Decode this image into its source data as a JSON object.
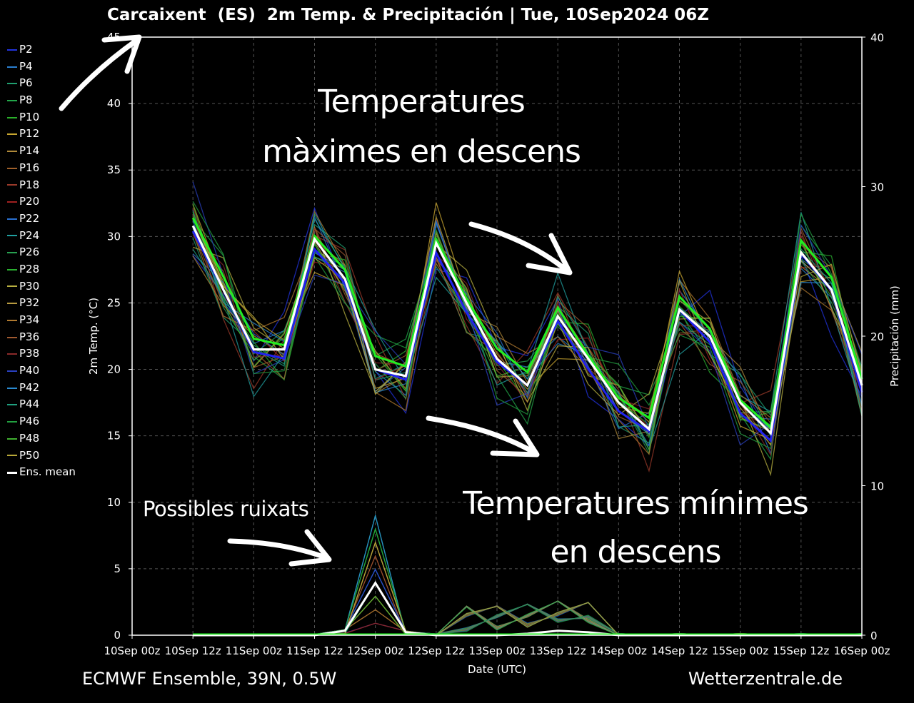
{
  "header": {
    "title": "Carcaixent  (ES)  2m Temp. & Precipitación | Tue, 10Sep2024 06Z"
  },
  "footer": {
    "left": "ECMWF Ensemble, 39N, 0.5W",
    "right": "Wetterzentrale.de"
  },
  "annotations": {
    "max_line1": "Temperatures",
    "max_line2": "màximes en descens",
    "min_line1": "Temperatures mínimes",
    "min_line2": "en descens",
    "rain": "Possibles ruixats"
  },
  "legend": [
    {
      "label": "P2",
      "color": "#2233dd"
    },
    {
      "label": "P4",
      "color": "#2a7fd0"
    },
    {
      "label": "P6",
      "color": "#20a070"
    },
    {
      "label": "P8",
      "color": "#22a84a"
    },
    {
      "label": "P10",
      "color": "#2ab02a"
    },
    {
      "label": "P12",
      "color": "#c8a630"
    },
    {
      "label": "P14",
      "color": "#b08a3a"
    },
    {
      "label": "P16",
      "color": "#a0602a"
    },
    {
      "label": "P18",
      "color": "#9a3a2a"
    },
    {
      "label": "P20",
      "color": "#a02020"
    },
    {
      "label": "P22",
      "color": "#2a70d0"
    },
    {
      "label": "P24",
      "color": "#20a0a0"
    },
    {
      "label": "P26",
      "color": "#28a050"
    },
    {
      "label": "P28",
      "color": "#2ab030"
    },
    {
      "label": "P30",
      "color": "#b8b040"
    },
    {
      "label": "P32",
      "color": "#b89a40"
    },
    {
      "label": "P34",
      "color": "#b07a30"
    },
    {
      "label": "P36",
      "color": "#a05a30"
    },
    {
      "label": "P38",
      "color": "#8a2a2a"
    },
    {
      "label": "P40",
      "color": "#2a40c0"
    },
    {
      "label": "P42",
      "color": "#2a8ad0"
    },
    {
      "label": "P44",
      "color": "#20a080"
    },
    {
      "label": "P46",
      "color": "#22a040"
    },
    {
      "label": "P48",
      "color": "#40b030"
    },
    {
      "label": "P50",
      "color": "#b8a838"
    },
    {
      "label": "Ens. mean",
      "color": "#ffffff"
    }
  ],
  "chart_data": {
    "type": "line",
    "xlabel": "Date (UTC)",
    "ylabel": "2m Temp. (°C)",
    "y2label": "Precipitación (mm)",
    "ylim": [
      0,
      45
    ],
    "y2lim": [
      0,
      40
    ],
    "xlim": [
      0,
      11
    ],
    "grid": true,
    "legend_position": "left",
    "xticks": [
      {
        "x": 0,
        "label": "10Sep  00z"
      },
      {
        "x": 1,
        "label": "10Sep  12z"
      },
      {
        "x": 2,
        "label": "11Sep  00z"
      },
      {
        "x": 3,
        "label": "11Sep  12z"
      },
      {
        "x": 4,
        "label": "12Sep  00z"
      },
      {
        "x": 5,
        "label": "12Sep  12z"
      },
      {
        "x": 6,
        "label": "13Sep  00z"
      },
      {
        "x": 7,
        "label": "13Sep  12z"
      },
      {
        "x": 8,
        "label": "14Sep  00z"
      },
      {
        "x": 9,
        "label": "14Sep  12z"
      },
      {
        "x": 10,
        "label": "15Sep  00z"
      },
      {
        "x": 11,
        "label": "15Sep  12z"
      },
      {
        "x": 12,
        "label": "16Sep  00z"
      }
    ],
    "yticks": [
      0,
      5,
      10,
      15,
      20,
      25,
      30,
      35,
      40,
      45
    ],
    "y2ticks": [
      0,
      10,
      20,
      30,
      40
    ],
    "series": [
      {
        "name": "Ens. mean",
        "kind": "temperature",
        "x": [
          1,
          1.5,
          2,
          2.5,
          3,
          3.5,
          4,
          4.5,
          5,
          5.5,
          6,
          6.5,
          7,
          7.5,
          8,
          8.5,
          9,
          9.5,
          10,
          10.5,
          11,
          11.5,
          12
        ],
        "values": [
          30.8,
          26.0,
          21.5,
          21.5,
          29.8,
          26.8,
          20.0,
          19.5,
          29.5,
          25.0,
          20.8,
          18.8,
          24.0,
          20.8,
          17.5,
          15.5,
          24.5,
          22.5,
          17.5,
          15.2,
          28.8,
          26.0,
          18.8
        ]
      },
      {
        "name": "Ens. mean",
        "kind": "precipitation",
        "x": [
          1,
          2,
          3,
          3.5,
          4,
          4.5,
          5,
          5.5,
          6,
          6.5,
          7,
          7.5,
          8,
          9,
          10,
          11,
          12
        ],
        "values": [
          0.0,
          0.0,
          0.0,
          0.3,
          3.5,
          0.2,
          0.0,
          0.0,
          0.0,
          0.1,
          0.3,
          0.2,
          0.0,
          0.0,
          0.0,
          0.0,
          0.0
        ]
      }
    ]
  }
}
